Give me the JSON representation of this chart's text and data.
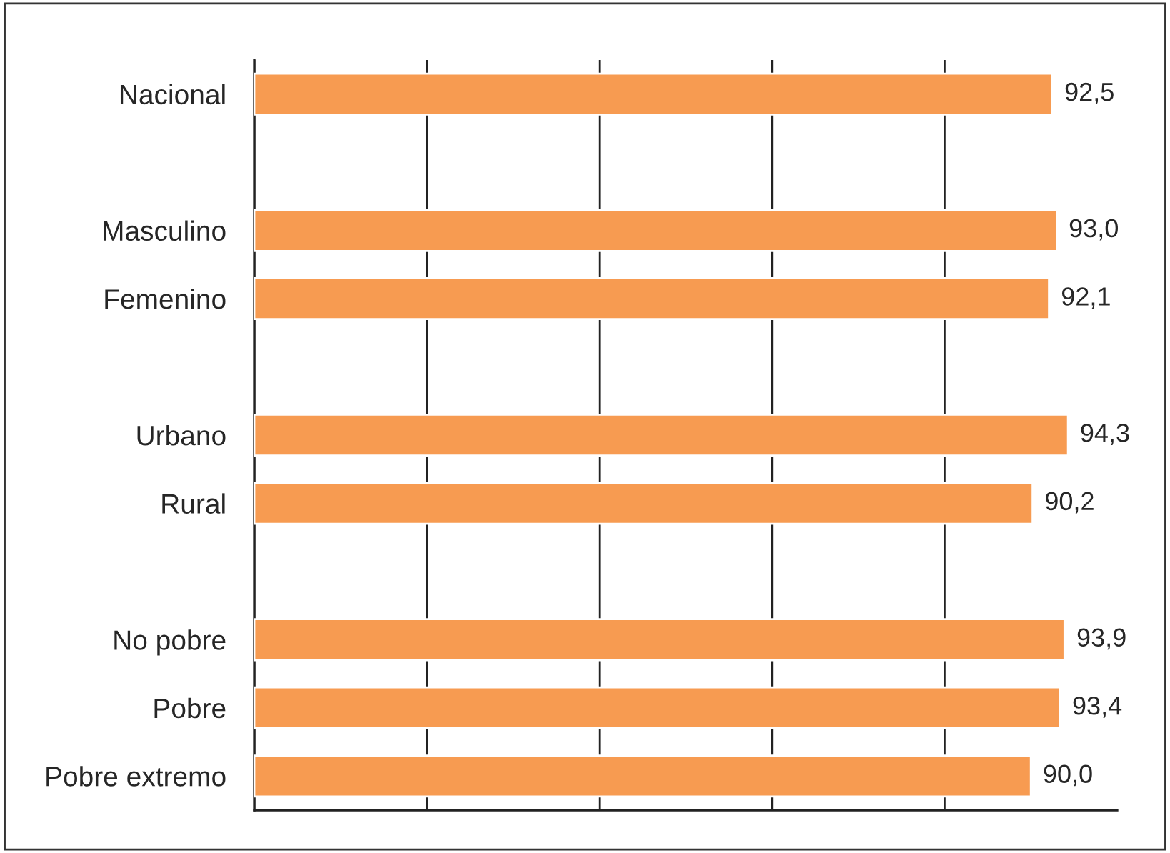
{
  "chart_data": {
    "type": "bar",
    "orientation": "horizontal",
    "categories": [
      "Nacional",
      null,
      "Masculino",
      "Femenino",
      null,
      "Urbano",
      "Rural",
      null,
      "No pobre",
      "Pobre",
      "Pobre extremo"
    ],
    "values": [
      92.5,
      null,
      93.0,
      92.1,
      null,
      94.3,
      90.2,
      null,
      93.9,
      93.4,
      90.0
    ],
    "value_labels": [
      "92,5",
      null,
      "93,0",
      "92,1",
      null,
      "94,3",
      "90,2",
      null,
      "93,9",
      "93,4",
      "90,0"
    ],
    "color": "#f79b51",
    "xlim": [
      0,
      100
    ],
    "xticks": [
      {
        "value": 0,
        "label": null
      },
      {
        "value": 20,
        "label": null
      },
      {
        "value": 40,
        "label": null
      },
      {
        "value": 60,
        "label": null
      },
      {
        "value": 80,
        "label": null
      }
    ],
    "grid": "x",
    "tick_labels": "y"
  }
}
